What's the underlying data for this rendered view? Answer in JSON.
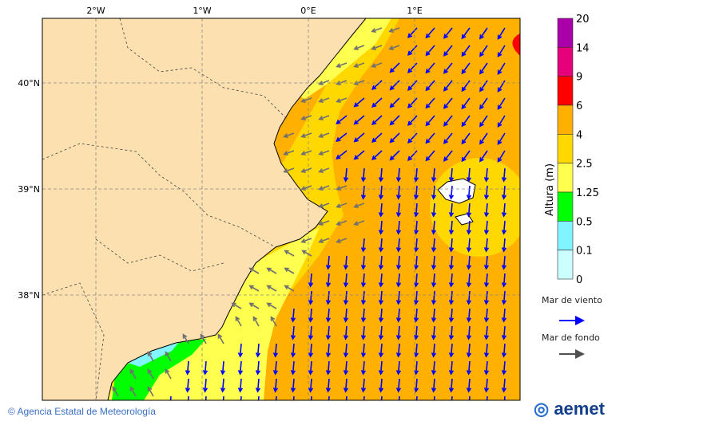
{
  "map": {
    "lon_labels": [
      "2°W",
      "1°W",
      "0°E",
      "1°E"
    ],
    "lat_labels": [
      "40°N",
      "39°N",
      "38°N"
    ],
    "colors": {
      "land": "#fde0b0",
      "orange": "#ffb000",
      "gold": "#ffd800",
      "yellow": "#ffff50",
      "green": "#00ff00",
      "cyan": "#80f4ff",
      "red": "#ff0000",
      "wind_arrow": "#0000ff",
      "swell_arrow": "#707070"
    }
  },
  "legend": {
    "title": "Altura (m)",
    "levels": [
      "20",
      "14",
      "9",
      "6",
      "4",
      "2.5",
      "1.25",
      "0.5",
      "0.1",
      "0"
    ],
    "colors": [
      "#aa00aa",
      "#e6007a",
      "#ff0000",
      "#ffb000",
      "#ffd800",
      "#ffff50",
      "#00ff00",
      "#80f4ff",
      "#ccffff"
    ],
    "wind_sea_label": "Mar de viento",
    "swell_label": "Mar de fondo"
  },
  "footer": {
    "copyright": "© Agencia Estatal de Meteorología",
    "logo": "aemet"
  }
}
